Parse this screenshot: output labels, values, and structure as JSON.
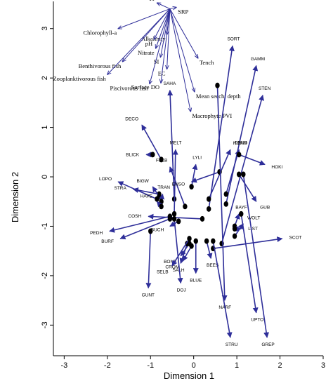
{
  "chart_data": {
    "type": "scatter",
    "title": "",
    "xlabel": "Dimension 1",
    "ylabel": "Dimension 2",
    "xlim": [
      -3.25,
      3.0
    ],
    "ylim": [
      -3.62,
      3.55
    ],
    "xticks": [
      -3,
      -2,
      -1,
      0,
      1,
      2,
      3
    ],
    "yticks": [
      -3,
      -2,
      -1,
      0,
      1,
      2,
      3
    ],
    "grid": false,
    "legend": "none",
    "colors": {
      "arrow": "#2e2e99",
      "point": "#000000"
    },
    "origin": [
      -0.55,
      3.4
    ],
    "variables": [
      {
        "name": "TP",
        "x": -0.85,
        "y": 3.52
      },
      {
        "name": "SRP",
        "x": -0.4,
        "y": 3.43
      },
      {
        "name": "Chlorophyll-a",
        "x": -1.75,
        "y": 3.0
      },
      {
        "name": "Alkalinity",
        "x": -0.62,
        "y": 2.88
      },
      {
        "name": "pH",
        "x": -0.92,
        "y": 2.78
      },
      {
        "name": "Nitrate",
        "x": -0.88,
        "y": 2.6
      },
      {
        "name": "SI",
        "x": -0.77,
        "y": 2.42
      },
      {
        "name": "Benthivorous fish",
        "x": -1.65,
        "y": 2.33
      },
      {
        "name": "Tench",
        "x": 0.1,
        "y": 2.4
      },
      {
        "name": "EC",
        "x": -0.62,
        "y": 2.18
      },
      {
        "name": "Zooplanktivorous fish",
        "x": -2.0,
        "y": 2.07
      },
      {
        "name": "Surface DO",
        "x": -0.76,
        "y": 1.9
      },
      {
        "name": "Piscivorous fish",
        "x": -1.02,
        "y": 1.88
      },
      {
        "name": "Mean secchi depth",
        "x": 0.02,
        "y": 1.72
      },
      {
        "name": "Macrophyte PVI",
        "x": -0.07,
        "y": 1.32
      }
    ],
    "sites": [
      {
        "name": "SORT",
        "from": [
          0.35,
          -0.65
        ],
        "to": [
          0.9,
          2.65
        ]
      },
      {
        "name": "GAMM",
        "from": [
          0.75,
          -0.55
        ],
        "to": [
          1.45,
          2.25
        ]
      },
      {
        "name": "STEN",
        "from": [
          0.65,
          -1.35
        ],
        "to": [
          1.6,
          1.65
        ]
      },
      {
        "name": "SAHA",
        "from": [
          -0.45,
          -0.45
        ],
        "to": [
          -0.55,
          1.75
        ]
      },
      {
        "name": "DECO",
        "from": [
          -0.75,
          0.35
        ],
        "to": [
          -1.2,
          1.05
        ]
      },
      {
        "name": "DEND",
        "from": [
          0.75,
          -0.35
        ],
        "to": [
          1.05,
          0.55
        ]
      },
      {
        "name": "HOKI",
        "from": [
          1.05,
          0.45
        ],
        "to": [
          1.65,
          0.25
        ]
      },
      {
        "name": "BLICK",
        "from": [
          -0.95,
          0.45
        ],
        "to": [
          -1.1,
          0.45
        ]
      },
      {
        "name": "MELT",
        "from": [
          -0.45,
          -0.75
        ],
        "to": [
          -0.42,
          0.55
        ]
      },
      {
        "name": "FELB",
        "from": [
          -0.2,
          -0.6
        ],
        "to": [
          -0.55,
          0.2
        ]
      },
      {
        "name": "LYLI",
        "from": [
          -0.05,
          -0.2
        ],
        "to": [
          0.05,
          0.25
        ]
      },
      {
        "name": "HOKM",
        "from": [
          0.35,
          -0.45
        ],
        "to": [
          0.85,
          0.55
        ]
      },
      {
        "name": "ENSO",
        "from": [
          0.6,
          0.1
        ],
        "to": [
          -0.05,
          -0.1
        ]
      },
      {
        "name": "GUB",
        "from": [
          1.05,
          0.05
        ],
        "to": [
          1.45,
          -0.5
        ]
      },
      {
        "name": "LOPO",
        "from": [
          -0.85,
          -0.45
        ],
        "to": [
          -1.75,
          -0.1
        ]
      },
      {
        "name": "STRA",
        "from": [
          -0.8,
          -0.35
        ],
        "to": [
          -1.4,
          -0.25
        ]
      },
      {
        "name": "BIGW",
        "from": [
          -0.8,
          -0.4
        ],
        "to": [
          -0.95,
          -0.2
        ]
      },
      {
        "name": "TRAN",
        "from": [
          -0.75,
          -0.5
        ],
        "to": [
          -0.72,
          -0.35
        ]
      },
      {
        "name": "HAVE",
        "from": [
          -0.75,
          -0.6
        ],
        "to": [
          -0.85,
          -0.5
        ]
      },
      {
        "name": "BAYF",
        "from": [
          0.95,
          -1.0
        ],
        "to": [
          1.05,
          -0.75
        ]
      },
      {
        "name": "WOLT",
        "from": [
          0.95,
          -1.2
        ],
        "to": [
          1.15,
          -0.95
        ]
      },
      {
        "name": "LIST",
        "from": [
          0.95,
          -1.05
        ],
        "to": [
          1.1,
          -1.05
        ]
      },
      {
        "name": "COSH",
        "from": [
          0.2,
          -0.85
        ],
        "to": [
          -1.05,
          -0.8
        ]
      },
      {
        "name": "PEDH",
        "from": [
          -0.55,
          -0.8
        ],
        "to": [
          -1.95,
          -1.1
        ]
      },
      {
        "name": "BURF",
        "from": [
          -0.55,
          -0.85
        ],
        "to": [
          -1.7,
          -1.25
        ]
      },
      {
        "name": "BUCH",
        "from": [
          -0.35,
          -0.9
        ],
        "to": [
          -0.55,
          -1.0
        ]
      },
      {
        "name": "SCOT",
        "from": [
          0.45,
          -1.45
        ],
        "to": [
          2.05,
          -1.25
        ]
      },
      {
        "name": "BONE",
        "from": [
          -0.1,
          -1.35
        ],
        "to": [
          -0.3,
          -1.6
        ]
      },
      {
        "name": "CROM",
        "from": [
          -0.05,
          -1.4
        ],
        "to": [
          -0.25,
          -1.7
        ]
      },
      {
        "name": "SALH",
        "from": [
          -0.15,
          -1.35
        ],
        "to": [
          -0.3,
          -1.75
        ]
      },
      {
        "name": "SELB",
        "from": [
          -0.1,
          -1.25
        ],
        "to": [
          -0.5,
          -1.8
        ]
      },
      {
        "name": "BEES",
        "from": [
          0.3,
          -1.3
        ],
        "to": [
          0.4,
          -1.65
        ]
      },
      {
        "name": "BLUE",
        "from": [
          0.05,
          -1.3
        ],
        "to": [
          0.05,
          -1.95
        ]
      },
      {
        "name": "GUNT",
        "from": [
          -1.0,
          -1.1
        ],
        "to": [
          -1.05,
          -2.25
        ]
      },
      {
        "name": "DOJ",
        "from": [
          -0.45,
          -0.85
        ],
        "to": [
          -0.3,
          -2.15
        ]
      },
      {
        "name": "NARF",
        "from": [
          0.55,
          1.85
        ],
        "to": [
          0.72,
          -2.5
        ]
      },
      {
        "name": "UPTO",
        "from": [
          1.1,
          -0.75
        ],
        "to": [
          1.45,
          -2.75
        ]
      },
      {
        "name": "STRU",
        "from": [
          0.45,
          -1.3
        ],
        "to": [
          0.85,
          -3.25
        ]
      },
      {
        "name": "GREP",
        "from": [
          1.15,
          0.05
        ],
        "to": [
          1.7,
          -3.25
        ]
      }
    ]
  }
}
